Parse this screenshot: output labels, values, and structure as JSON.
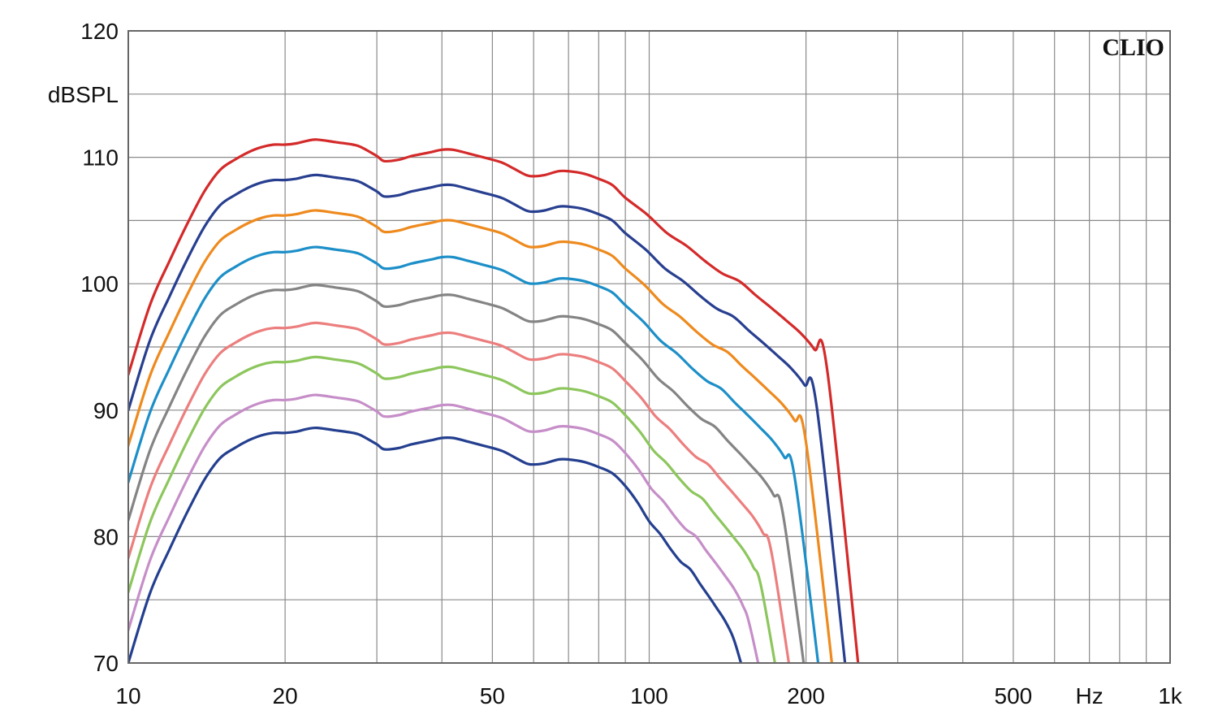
{
  "chart_data": {
    "type": "line",
    "brand": "CLIO",
    "ylabel": "dBSPL",
    "xunit": "Hz",
    "xscale": "log",
    "xlim": [
      10,
      1000
    ],
    "ylim": [
      70,
      120
    ],
    "grid": true,
    "legend": "none",
    "ytick_labels": [
      "120",
      "110",
      "100",
      "90",
      "80",
      "70"
    ],
    "ytick_values": [
      120,
      110,
      100,
      90,
      80,
      70
    ],
    "xtick_labels": [
      "10",
      "20",
      "50",
      "100",
      "200",
      "500",
      "1k"
    ],
    "xtick_values": [
      10,
      20,
      50,
      100,
      200,
      500,
      1000
    ],
    "base_curve": {
      "x": [
        10,
        11,
        12,
        13,
        14,
        15,
        16,
        17,
        18,
        19,
        20,
        21,
        22,
        23,
        25,
        27,
        28,
        30,
        31,
        33,
        35,
        38,
        40,
        42,
        45,
        48,
        52,
        55,
        58,
        60,
        63,
        67,
        70,
        75,
        80,
        85,
        90,
        95,
        100,
        105,
        110,
        115,
        120,
        125,
        130,
        135,
        140,
        145,
        150
      ],
      "y": [
        0,
        5.5,
        9.0,
        12.0,
        14.5,
        16.2,
        17.0,
        17.6,
        18.0,
        18.2,
        18.2,
        18.3,
        18.5,
        18.6,
        18.4,
        18.2,
        18.0,
        17.3,
        16.9,
        17.0,
        17.3,
        17.6,
        17.8,
        17.8,
        17.5,
        17.2,
        16.8,
        16.3,
        15.8,
        15.7,
        15.8,
        16.1,
        16.1,
        15.9,
        15.5,
        15.0,
        14.0,
        12.7,
        11.2,
        10.2,
        9.0,
        8.0,
        7.4,
        6.3,
        5.3,
        4.3,
        3.3,
        2.0,
        0
      ]
    },
    "series": [
      {
        "offset": 22.8,
        "color": "#d42a2a"
      },
      {
        "offset": 20.0,
        "color": "#283f90"
      },
      {
        "offset": 17.2,
        "color": "#ee8a1e"
      },
      {
        "offset": 14.3,
        "color": "#1d8fc8"
      },
      {
        "offset": 11.3,
        "color": "#848484"
      },
      {
        "offset": 8.3,
        "color": "#ec7e7e"
      },
      {
        "offset": 5.6,
        "color": "#8cc65c"
      },
      {
        "offset": 2.6,
        "color": "#c68ec8"
      },
      {
        "offset": 0,
        "color": "#243f8f"
      }
    ]
  }
}
